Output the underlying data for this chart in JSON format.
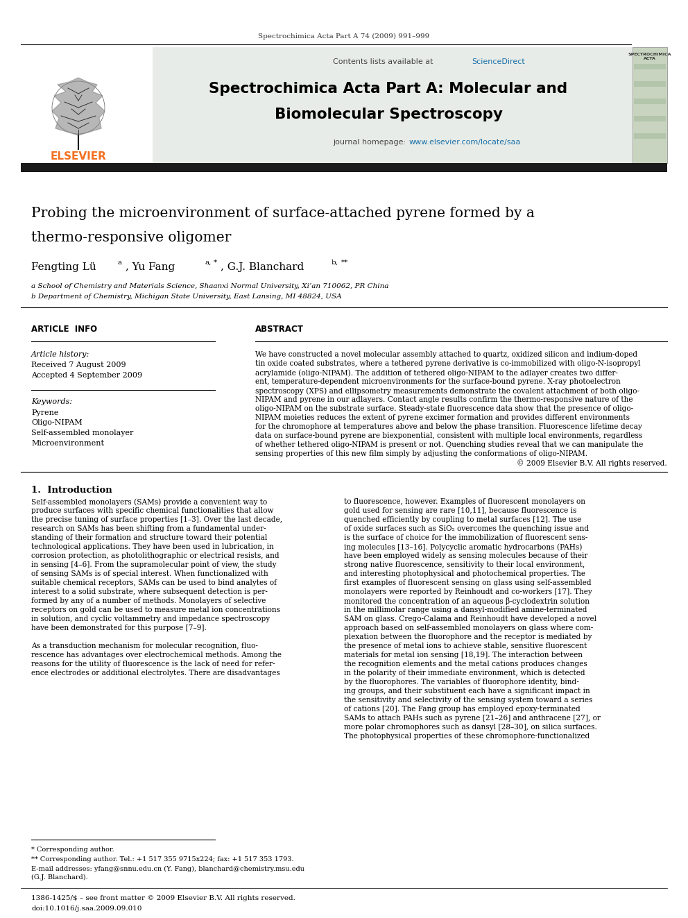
{
  "page_width": 9.92,
  "page_height": 13.23,
  "bg_color": "#ffffff",
  "journal_ref": "Spectrochimica Acta Part A 74 (2009) 991–999",
  "contents_line": "Contents lists available at ScienceDirect",
  "sciencedirect_color": "#1a6fa8",
  "journal_title_line1": "Spectrochimica Acta Part A: Molecular and",
  "journal_title_line2": "Biomolecular Spectroscopy",
  "journal_homepage_text": "journal homepage: ",
  "journal_homepage_url": "www.elsevier.com/locate/saa",
  "header_bg": "#e8ece8",
  "paper_title_line1": "Probing the microenvironment of surface-attached pyrene formed by a",
  "paper_title_line2": "thermo-responsive oligomer",
  "affil_a": "a School of Chemistry and Materials Science, Shaanxi Normal University, Xi’an 710062, PR China",
  "affil_b": "b Department of Chemistry, Michigan State University, East Lansing, MI 48824, USA",
  "section_article_info": "ARTICLE  INFO",
  "section_abstract": "ABSTRACT",
  "article_history_label": "Article history:",
  "received": "Received 7 August 2009",
  "accepted": "Accepted 4 September 2009",
  "keywords_label": "Keywords:",
  "keywords": [
    "Pyrene",
    "Oligo-NIPAM",
    "Self-assembled monolayer",
    "Microenvironment"
  ],
  "copyright": "© 2009 Elsevier B.V. All rights reserved.",
  "intro_heading": "1.  Introduction",
  "footnote_star": "* Corresponding author.",
  "footnote_starstar": "** Corresponding author. Tel.: +1 517 355 9715x224; fax: +1 517 353 1793.",
  "footnote_email": "E-mail addresses: yfang@snnu.edu.cn (Y. Fang), blanchard@chemistry.msu.edu",
  "footnote_email2": "(G.J. Blanchard).",
  "footer_text": "1386-1425/$ – see front matter © 2009 Elsevier B.V. All rights reserved.",
  "footer_doi": "doi:10.1016/j.saa.2009.09.010",
  "dark_bar_color": "#1a1a1a",
  "elsevier_orange": "#f37021",
  "abstract_lines": [
    "We have constructed a novel molecular assembly attached to quartz, oxidized silicon and indium-doped",
    "tin oxide coated substrates, where a tethered pyrene derivative is co-immobilized with oligo-N-isopropyl",
    "acrylamide (oligo-NIPAM). The addition of tethered oligo-NIPAM to the adlayer creates two differ-",
    "ent, temperature-dependent microenvironments for the surface-bound pyrene. X-ray photoelectron",
    "spectroscopy (XPS) and ellipsometry measurements demonstrate the covalent attachment of both oligo-",
    "NIPAM and pyrene in our adlayers. Contact angle results confirm the thermo-responsive nature of the",
    "oligo-NIPAM on the substrate surface. Steady-state fluorescence data show that the presence of oligo-",
    "NIPAM moieties reduces the extent of pyrene excimer formation and provides different environments",
    "for the chromophore at temperatures above and below the phase transition. Fluorescence lifetime decay",
    "data on surface-bound pyrene are biexponential, consistent with multiple local environments, regardless",
    "of whether tethered oligo-NIPAM is present or not. Quenching studies reveal that we can manipulate the",
    "sensing properties of this new film simply by adjusting the conformations of oligo-NIPAM."
  ],
  "intro_col1_lines": [
    "Self-assembled monolayers (SAMs) provide a convenient way to",
    "produce surfaces with specific chemical functionalities that allow",
    "the precise tuning of surface properties [1–3]. Over the last decade,",
    "research on SAMs has been shifting from a fundamental under-",
    "standing of their formation and structure toward their potential",
    "technological applications. They have been used in lubrication, in",
    "corrosion protection, as photolithographic or electrical resists, and",
    "in sensing [4–6]. From the supramolecular point of view, the study",
    "of sensing SAMs is of special interest. When functionalized with",
    "suitable chemical receptors, SAMs can be used to bind analytes of",
    "interest to a solid substrate, where subsequent detection is per-",
    "formed by any of a number of methods. Monolayers of selective",
    "receptors on gold can be used to measure metal ion concentrations",
    "in solution, and cyclic voltammetry and impedance spectroscopy",
    "have been demonstrated for this purpose [7–9].",
    "",
    "As a transduction mechanism for molecular recognition, fluo-",
    "rescence has advantages over electrochemical methods. Among the",
    "reasons for the utility of fluorescence is the lack of need for refer-",
    "ence electrodes or additional electrolytes. There are disadvantages"
  ],
  "intro_col2_lines": [
    "to fluorescence, however. Examples of fluorescent monolayers on",
    "gold used for sensing are rare [10,11], because fluorescence is",
    "quenched efficiently by coupling to metal surfaces [12]. The use",
    "of oxide surfaces such as SiO₂ overcomes the quenching issue and",
    "is the surface of choice for the immobilization of fluorescent sens-",
    "ing molecules [13–16]. Polycyclic aromatic hydrocarbons (PAHs)",
    "have been employed widely as sensing molecules because of their",
    "strong native fluorescence, sensitivity to their local environment,",
    "and interesting photophysical and photochemical properties. The",
    "first examples of fluorescent sensing on glass using self-assembled",
    "monolayers were reported by Reinhoudt and co-workers [17]. They",
    "monitored the concentration of an aqueous β-cyclodextrin solution",
    "in the millimolar range using a dansyl-modified amine-terminated",
    "SAM on glass. Crego-Calama and Reinhoudt have developed a novel",
    "approach based on self-assembled monolayers on glass where com-",
    "plexation between the fluorophore and the receptor is mediated by",
    "the presence of metal ions to achieve stable, sensitive fluorescent",
    "materials for metal ion sensing [18,19]. The interaction between",
    "the recognition elements and the metal cations produces changes",
    "in the polarity of their immediate environment, which is detected",
    "by the fluorophores. The variables of fluorophore identity, bind-",
    "ing groups, and their substituent each have a significant impact in",
    "the sensitivity and selectivity of the sensing system toward a series",
    "of cations [20]. The Fang group has employed epoxy-terminated",
    "SAMs to attach PAHs such as pyrene [21–26] and anthracene [27], or",
    "more polar chromophores such as dansyl [28–30], on silica surfaces.",
    "The photophysical properties of these chromophore-functionalized"
  ]
}
